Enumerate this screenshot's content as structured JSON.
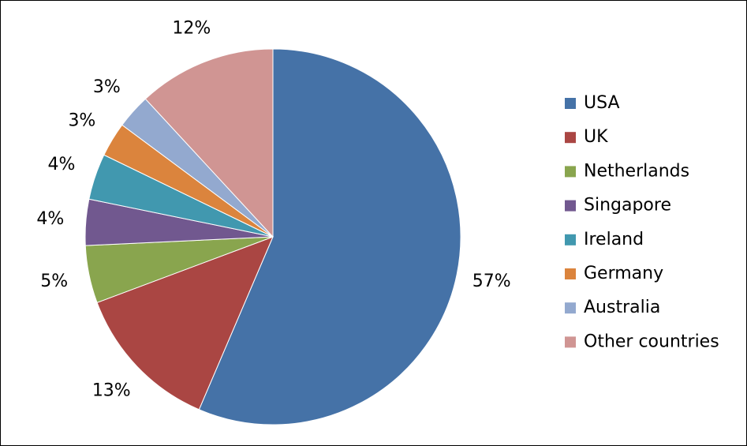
{
  "chart_data": {
    "type": "pie",
    "categories": [
      "USA",
      "UK",
      "Netherlands",
      "Singapore",
      "Ireland",
      "Germany",
      "Australia",
      "Other countries"
    ],
    "values": [
      57,
      13,
      5,
      4,
      4,
      3,
      3,
      12
    ],
    "value_labels": [
      "57%",
      "13%",
      "5%",
      "4%",
      "4%",
      "3%",
      "3%",
      "12%"
    ],
    "colors": [
      "#4572a7",
      "#aa4643",
      "#89a54e",
      "#71588f",
      "#4198af",
      "#db843d",
      "#93a9cf",
      "#d09593"
    ],
    "legend": "right"
  }
}
